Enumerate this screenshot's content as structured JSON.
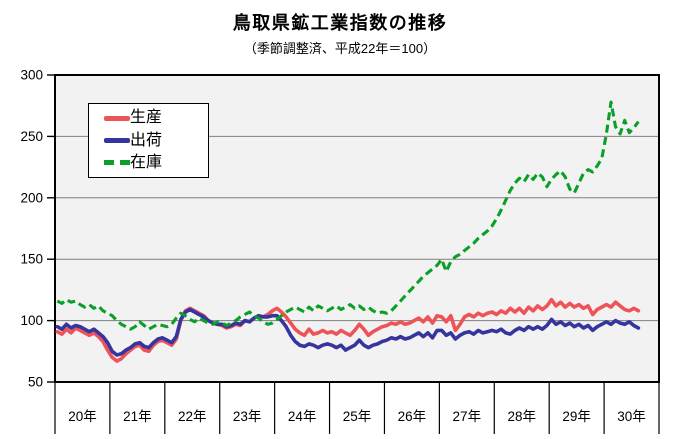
{
  "title": "鳥取県鉱工業指数の推移",
  "subtitle": "（季節調整済、平成22年＝100）",
  "colors": {
    "plot_background": "#f2f2f2",
    "grid": "#808080",
    "axis": "#000000",
    "production_red": "#ee5358",
    "shipment_blue": "#35359d",
    "inventory_green": "#0aa028"
  },
  "chart_data": {
    "type": "line",
    "title": "鳥取県鉱工業指数の推移",
    "subtitle": "（季節調整済、平成22年＝100）",
    "xlabel": "",
    "ylabel": "",
    "ylim": [
      50,
      300
    ],
    "yticks": [
      50,
      100,
      150,
      200,
      250,
      300
    ],
    "grid": "horizontal",
    "legend_position": "top-left-inside",
    "categories": [
      "20年",
      "21年",
      "22年",
      "23年",
      "24年",
      "25年",
      "26年",
      "27年",
      "28年",
      "29年",
      "30年"
    ],
    "months_per_category": 12,
    "note": "monthly points, Heisei 20 Jan through Heisei 30 Aug (128 points)",
    "series": [
      {
        "name": "生産",
        "color": "#ee5358",
        "style": "solid",
        "values": [
          91,
          89,
          93,
          90,
          94,
          92,
          90,
          88,
          90,
          87,
          83,
          76,
          70,
          67,
          69,
          73,
          76,
          79,
          80,
          76,
          75,
          80,
          83,
          84,
          82,
          80,
          85,
          100,
          108,
          110,
          108,
          106,
          104,
          100,
          98,
          97,
          96,
          94,
          95,
          97,
          96,
          100,
          99,
          102,
          104,
          103,
          105,
          108,
          110,
          107,
          103,
          98,
          93,
          90,
          88,
          93,
          89,
          90,
          92,
          90,
          91,
          89,
          92,
          90,
          88,
          92,
          97,
          93,
          88,
          91,
          93,
          95,
          96,
          98,
          97,
          99,
          97,
          98,
          100,
          102,
          99,
          103,
          98,
          104,
          103,
          99,
          104,
          92,
          97,
          103,
          105,
          103,
          106,
          104,
          106,
          107,
          105,
          108,
          106,
          110,
          107,
          110,
          106,
          111,
          108,
          112,
          109,
          112,
          117,
          112,
          115,
          111,
          114,
          111,
          113,
          110,
          112,
          105,
          109,
          111,
          113,
          111,
          115,
          112,
          109,
          108,
          110,
          108
        ]
      },
      {
        "name": "出荷",
        "color": "#35359d",
        "style": "solid",
        "values": [
          95,
          93,
          97,
          94,
          96,
          95,
          93,
          91,
          93,
          90,
          87,
          82,
          75,
          72,
          73,
          76,
          78,
          81,
          82,
          79,
          78,
          82,
          85,
          86,
          84,
          82,
          87,
          101,
          107,
          109,
          107,
          105,
          103,
          100,
          98,
          97,
          97,
          95,
          96,
          98,
          97,
          100,
          99,
          102,
          104,
          103,
          103,
          104,
          104,
          100,
          95,
          88,
          83,
          80,
          79,
          81,
          80,
          78,
          80,
          81,
          80,
          78,
          80,
          76,
          78,
          80,
          84,
          80,
          78,
          80,
          81,
          83,
          84,
          86,
          85,
          87,
          85,
          86,
          88,
          90,
          87,
          90,
          86,
          92,
          92,
          88,
          90,
          85,
          88,
          90,
          91,
          89,
          92,
          90,
          91,
          92,
          91,
          93,
          90,
          89,
          92,
          94,
          92,
          95,
          93,
          95,
          93,
          96,
          101,
          97,
          99,
          96,
          98,
          95,
          97,
          94,
          96,
          92,
          95,
          97,
          99,
          97,
          100,
          98,
          97,
          99,
          96,
          94
        ]
      },
      {
        "name": "在庫",
        "color": "#0aa028",
        "style": "dashed",
        "values": [
          116,
          114,
          117,
          115,
          116,
          113,
          111,
          113,
          110,
          112,
          108,
          106,
          104,
          100,
          97,
          95,
          93,
          95,
          99,
          96,
          93,
          95,
          97,
          96,
          95,
          97,
          102,
          106,
          104,
          101,
          99,
          102,
          100,
          98,
          97,
          99,
          98,
          96,
          98,
          100,
          103,
          105,
          107,
          104,
          102,
          99,
          97,
          98,
          101,
          104,
          107,
          109,
          111,
          109,
          107,
          111,
          108,
          112,
          110,
          108,
          110,
          112,
          109,
          111,
          113,
          110,
          112,
          109,
          111,
          108,
          106,
          107,
          106,
          108,
          112,
          116,
          120,
          124,
          128,
          132,
          136,
          139,
          142,
          145,
          150,
          140,
          148,
          152,
          154,
          157,
          160,
          163,
          167,
          170,
          173,
          177,
          183,
          190,
          198,
          206,
          212,
          216,
          213,
          219,
          215,
          220,
          217,
          209,
          215,
          219,
          222,
          217,
          207,
          204,
          212,
          220,
          223,
          221,
          226,
          232,
          252,
          278,
          258,
          252,
          263,
          253,
          257,
          262
        ]
      }
    ]
  }
}
